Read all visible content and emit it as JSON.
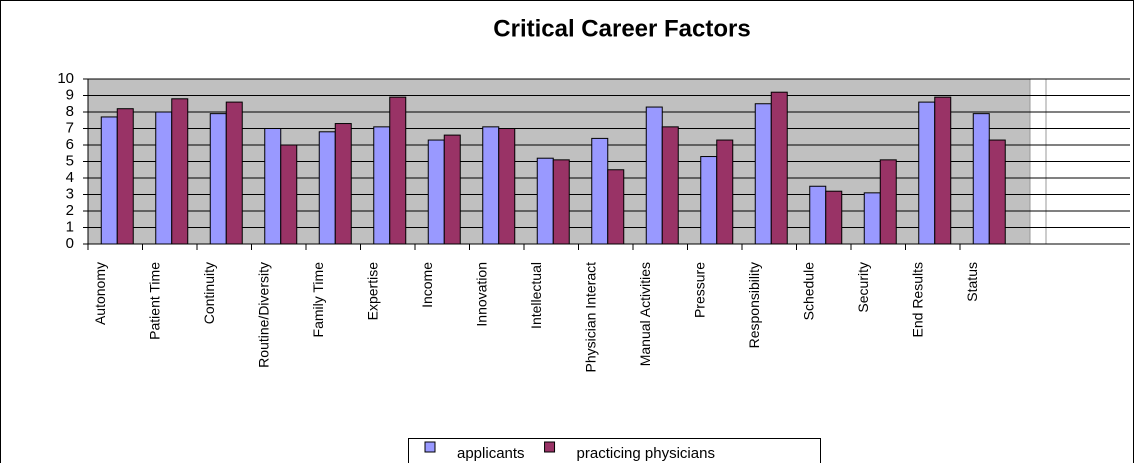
{
  "chart_data": {
    "type": "bar",
    "title": "Critical Career Factors",
    "categories": [
      "Autonomy",
      "Patient Time",
      "Continuity",
      "Routine/Diversity",
      "Family Time",
      "Expertise",
      "Income",
      "Innovation",
      "Intellectual",
      "Physician Interact",
      "Manual Activities",
      "Pressure",
      "Responsibility",
      "Schedule",
      "Security",
      "End Results",
      "Status"
    ],
    "series": [
      {
        "name": "applicants",
        "color": "#9999ff",
        "values": [
          7.7,
          8.0,
          7.9,
          7.0,
          6.8,
          7.1,
          6.3,
          7.1,
          5.2,
          6.4,
          8.3,
          5.3,
          8.5,
          3.5,
          3.1,
          8.6,
          7.9
        ]
      },
      {
        "name": "practicing physicians",
        "color": "#993366",
        "values": [
          8.2,
          8.8,
          8.6,
          6.0,
          7.3,
          8.9,
          6.6,
          7.0,
          5.1,
          4.5,
          7.1,
          6.3,
          9.2,
          3.2,
          5.1,
          8.9,
          6.3
        ]
      }
    ],
    "ylim": [
      0,
      10
    ],
    "yticks": [
      0,
      1,
      2,
      3,
      4,
      5,
      6,
      7,
      8,
      9,
      10
    ],
    "grid": true,
    "legend": "bottom"
  }
}
